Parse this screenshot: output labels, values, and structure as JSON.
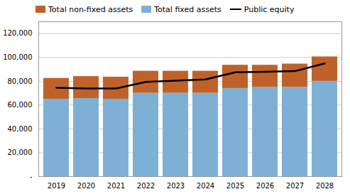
{
  "chart_data": {
    "type": "bar",
    "stacked": true,
    "categories": [
      "2019",
      "2020",
      "2021",
      "2022",
      "2023",
      "2024",
      "2025",
      "2026",
      "2027",
      "2028"
    ],
    "series": [
      {
        "name": "Total non-fixed assets",
        "type": "bar",
        "color": "#BF622A",
        "values": [
          17500,
          18500,
          18500,
          18500,
          18500,
          18500,
          19500,
          18500,
          19500,
          20500
        ]
      },
      {
        "name": "Total fixed assets",
        "type": "bar",
        "color": "#7EB0D5",
        "values": [
          65000,
          65500,
          65000,
          70000,
          70000,
          70000,
          74000,
          75000,
          75000,
          80000
        ]
      },
      {
        "name": "Public equity",
        "type": "line",
        "color": "#000000",
        "values": [
          74500,
          74000,
          74000,
          79500,
          80500,
          81500,
          87500,
          88000,
          88500,
          95000
        ]
      }
    ],
    "ylim": [
      0,
      130000
    ],
    "yticks": [
      {
        "value": 0,
        "label": "-"
      },
      {
        "value": 20000,
        "label": "20,000"
      },
      {
        "value": 40000,
        "label": "40,000"
      },
      {
        "value": 60000,
        "label": "60,000"
      },
      {
        "value": 80000,
        "label": "80,000"
      },
      {
        "value": 100000,
        "label": "100,000"
      },
      {
        "value": 120000,
        "label": "120,000"
      }
    ],
    "grid": true,
    "legend": "upper left"
  }
}
